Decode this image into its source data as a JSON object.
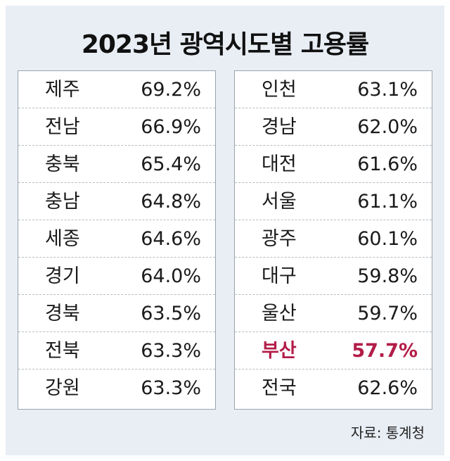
{
  "chart_data": {
    "type": "table",
    "title": "2023년 광역시도별 고용률",
    "columns": [
      [
        {
          "region": "제주",
          "value": "69.2%"
        },
        {
          "region": "전남",
          "value": "66.9%"
        },
        {
          "region": "충북",
          "value": "65.4%"
        },
        {
          "region": "충남",
          "value": "64.8%"
        },
        {
          "region": "세종",
          "value": "64.6%"
        },
        {
          "region": "경기",
          "value": "64.0%"
        },
        {
          "region": "경북",
          "value": "63.5%"
        },
        {
          "region": "전북",
          "value": "63.3%"
        },
        {
          "region": "강원",
          "value": "63.3%"
        }
      ],
      [
        {
          "region": "인천",
          "value": "63.1%"
        },
        {
          "region": "경남",
          "value": "62.0%"
        },
        {
          "region": "대전",
          "value": "61.6%"
        },
        {
          "region": "서울",
          "value": "61.1%"
        },
        {
          "region": "광주",
          "value": "60.1%"
        },
        {
          "region": "대구",
          "value": "59.8%"
        },
        {
          "region": "울산",
          "value": "59.7%"
        },
        {
          "region": "부산",
          "value": "57.7%",
          "highlight": true
        },
        {
          "region": "전국",
          "value": "62.6%"
        }
      ]
    ],
    "source": "자료: 통계청"
  },
  "colors": {
    "background": "#e9eef5",
    "highlight": "#b31d48",
    "text": "#1a1a1a"
  }
}
